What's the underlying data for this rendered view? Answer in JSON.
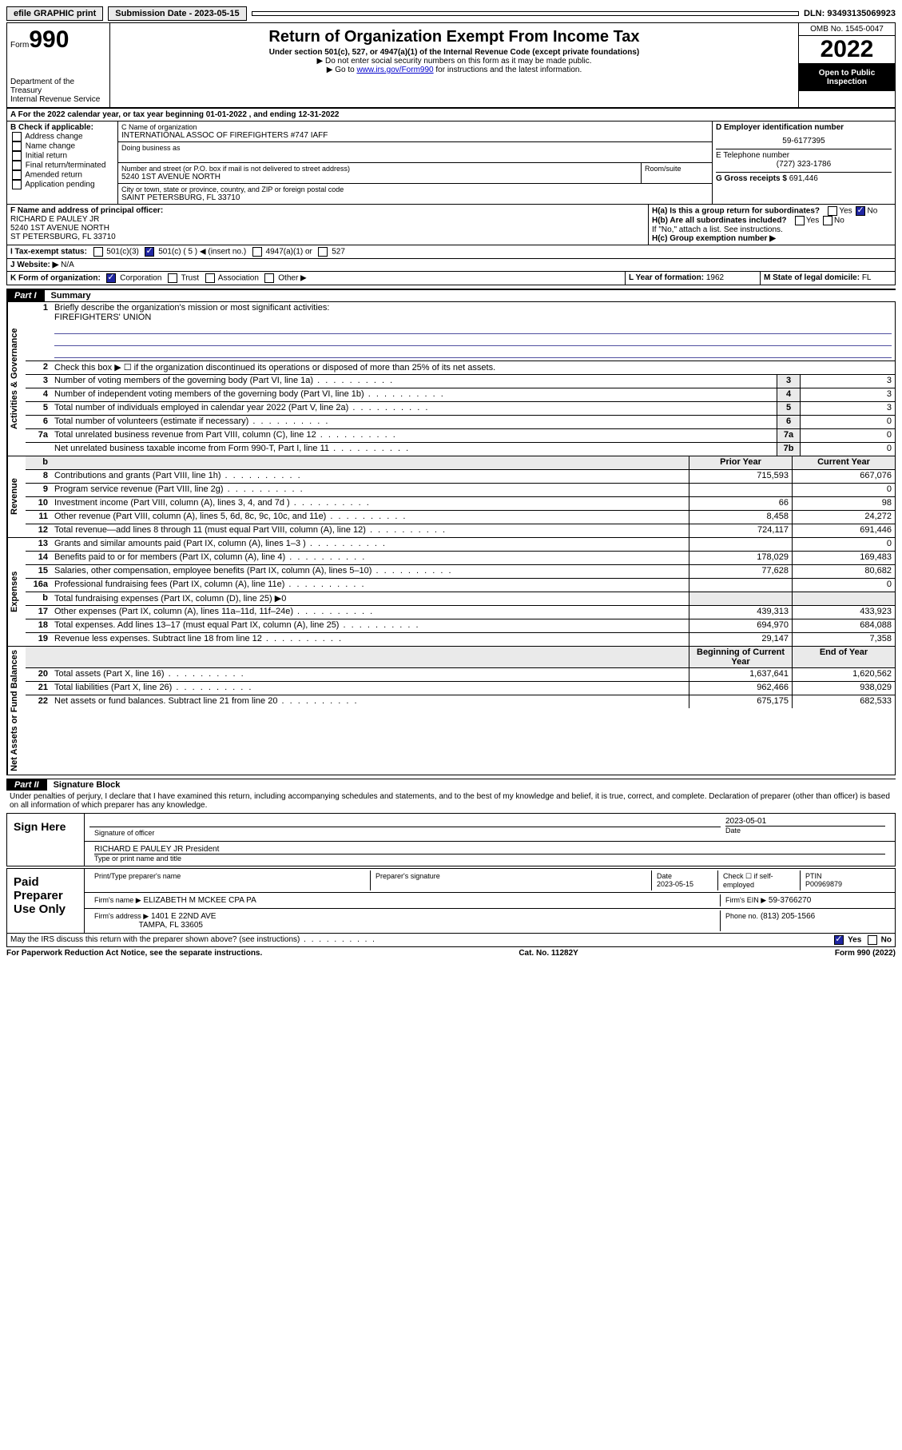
{
  "topbar": {
    "efile": "efile GRAPHIC print",
    "submission_label": "Submission Date - 2023-05-15",
    "dln": "DLN: 93493135069923"
  },
  "header": {
    "form_prefix": "Form",
    "form_number": "990",
    "dept": "Department of the Treasury",
    "irs": "Internal Revenue Service",
    "title": "Return of Organization Exempt From Income Tax",
    "sub": "Under section 501(c), 527, or 4947(a)(1) of the Internal Revenue Code (except private foundations)",
    "note1": "▶ Do not enter social security numbers on this form as it may be made public.",
    "note2_pre": "▶ Go to ",
    "note2_link": "www.irs.gov/Form990",
    "note2_post": " for instructions and the latest information.",
    "omb": "OMB No. 1545-0047",
    "year": "2022",
    "open": "Open to Public Inspection"
  },
  "line_a": "A For the 2022 calendar year, or tax year beginning 01-01-2022    , and ending 12-31-2022",
  "b": {
    "label": "B Check if applicable:",
    "opts": [
      "Address change",
      "Name change",
      "Initial return",
      "Final return/terminated",
      "Amended return",
      "Application pending"
    ]
  },
  "c": {
    "name_label": "C Name of organization",
    "name": "INTERNATIONAL ASSOC OF FIREFIGHTERS #747 IAFF",
    "dba_label": "Doing business as",
    "street_label": "Number and street (or P.O. box if mail is not delivered to street address)",
    "room_label": "Room/suite",
    "street": "5240 1ST AVENUE NORTH",
    "city_label": "City or town, state or province, country, and ZIP or foreign postal code",
    "city": "SAINT PETERSBURG, FL  33710"
  },
  "d": {
    "label": "D Employer identification number",
    "ein": "59-6177395",
    "e_label": "E Telephone number",
    "phone": "(727) 323-1786",
    "g_label": "G Gross receipts $",
    "g_val": "691,446"
  },
  "f": {
    "label": "F  Name and address of principal officer:",
    "name": "RICHARD E PAULEY JR",
    "street": "5240 1ST AVENUE NORTH",
    "city": "ST PETERSBURG, FL  33710"
  },
  "h": {
    "a": "H(a)  Is this a group return for subordinates?",
    "b": "H(b)  Are all subordinates included?",
    "b_note": "If \"No,\" attach a list. See instructions.",
    "c": "H(c)  Group exemption number ▶",
    "yes": "Yes",
    "no": "No"
  },
  "i": {
    "label": "I    Tax-exempt status:",
    "c3": "501(c)(3)",
    "c": "501(c) ( 5 ) ◀ (insert no.)",
    "a1": "4947(a)(1) or",
    "527": "527"
  },
  "j": {
    "label": "J    Website: ▶",
    "val": "N/A"
  },
  "k": {
    "label": "K Form of organization:",
    "corp": "Corporation",
    "trust": "Trust",
    "assoc": "Association",
    "other": "Other ▶"
  },
  "l": {
    "label": "L Year of formation:",
    "val": "1962"
  },
  "m": {
    "label": "M State of legal domicile:",
    "val": "FL"
  },
  "part1": {
    "header": "Part I",
    "title": "Summary",
    "q1": "Briefly describe the organization's mission or most significant activities:",
    "mission": "FIREFIGHTERS' UNION",
    "q2": "Check this box ▶ ☐  if the organization discontinued its operations or disposed of more than 25% of its net assets.",
    "rows_gov": [
      {
        "n": "3",
        "d": "Number of voting members of the governing body (Part VI, line 1a)",
        "b": "3",
        "v": "3"
      },
      {
        "n": "4",
        "d": "Number of independent voting members of the governing body (Part VI, line 1b)",
        "b": "4",
        "v": "3"
      },
      {
        "n": "5",
        "d": "Total number of individuals employed in calendar year 2022 (Part V, line 2a)",
        "b": "5",
        "v": "3"
      },
      {
        "n": "6",
        "d": "Total number of volunteers (estimate if necessary)",
        "b": "6",
        "v": "0"
      },
      {
        "n": "7a",
        "d": "Total unrelated business revenue from Part VIII, column (C), line 12",
        "b": "7a",
        "v": "0"
      },
      {
        "n": "",
        "d": "Net unrelated business taxable income from Form 990-T, Part I, line 11",
        "b": "7b",
        "v": "0"
      }
    ],
    "col_prior": "Prior Year",
    "col_current": "Current Year",
    "rows_rev": [
      {
        "n": "8",
        "d": "Contributions and grants (Part VIII, line 1h)",
        "p": "715,593",
        "c": "667,076"
      },
      {
        "n": "9",
        "d": "Program service revenue (Part VIII, line 2g)",
        "p": "",
        "c": "0"
      },
      {
        "n": "10",
        "d": "Investment income (Part VIII, column (A), lines 3, 4, and 7d )",
        "p": "66",
        "c": "98"
      },
      {
        "n": "11",
        "d": "Other revenue (Part VIII, column (A), lines 5, 6d, 8c, 9c, 10c, and 11e)",
        "p": "8,458",
        "c": "24,272"
      },
      {
        "n": "12",
        "d": "Total revenue—add lines 8 through 11 (must equal Part VIII, column (A), line 12)",
        "p": "724,117",
        "c": "691,446"
      }
    ],
    "rows_exp": [
      {
        "n": "13",
        "d": "Grants and similar amounts paid (Part IX, column (A), lines 1–3 )",
        "p": "",
        "c": "0"
      },
      {
        "n": "14",
        "d": "Benefits paid to or for members (Part IX, column (A), line 4)",
        "p": "178,029",
        "c": "169,483"
      },
      {
        "n": "15",
        "d": "Salaries, other compensation, employee benefits (Part IX, column (A), lines 5–10)",
        "p": "77,628",
        "c": "80,682"
      },
      {
        "n": "16a",
        "d": "Professional fundraising fees (Part IX, column (A), line 11e)",
        "p": "",
        "c": "0"
      },
      {
        "n": "b",
        "d": "Total fundraising expenses (Part IX, column (D), line 25) ▶0",
        "p": "grey",
        "c": "grey"
      },
      {
        "n": "17",
        "d": "Other expenses (Part IX, column (A), lines 11a–11d, 11f–24e)",
        "p": "439,313",
        "c": "433,923"
      },
      {
        "n": "18",
        "d": "Total expenses. Add lines 13–17 (must equal Part IX, column (A), line 25)",
        "p": "694,970",
        "c": "684,088"
      },
      {
        "n": "19",
        "d": "Revenue less expenses. Subtract line 18 from line 12",
        "p": "29,147",
        "c": "7,358"
      }
    ],
    "col_begin": "Beginning of Current Year",
    "col_end": "End of Year",
    "rows_net": [
      {
        "n": "20",
        "d": "Total assets (Part X, line 16)",
        "p": "1,637,641",
        "c": "1,620,562"
      },
      {
        "n": "21",
        "d": "Total liabilities (Part X, line 26)",
        "p": "962,466",
        "c": "938,029"
      },
      {
        "n": "22",
        "d": "Net assets or fund balances. Subtract line 21 from line 20",
        "p": "675,175",
        "c": "682,533"
      }
    ],
    "side_gov": "Activities & Governance",
    "side_rev": "Revenue",
    "side_exp": "Expenses",
    "side_net": "Net Assets or Fund Balances"
  },
  "part2": {
    "header": "Part II",
    "title": "Signature Block",
    "decl": "Under penalties of perjury, I declare that I have examined this return, including accompanying schedules and statements, and to the best of my knowledge and belief, it is true, correct, and complete. Declaration of preparer (other than officer) is based on all information of which preparer has any knowledge."
  },
  "sign": {
    "here": "Sign Here",
    "sig_officer": "Signature of officer",
    "date": "Date",
    "date_val": "2023-05-01",
    "name": "RICHARD E PAULEY JR President",
    "type_label": "Type or print name and title"
  },
  "paid": {
    "label": "Paid Preparer Use Only",
    "col1": "Print/Type preparer's name",
    "col2": "Preparer's signature",
    "col3": "Date",
    "date": "2023-05-15",
    "check": "Check ☐ if self-employed",
    "ptin_label": "PTIN",
    "ptin": "P00969879",
    "firm_name_label": "Firm's name    ▶",
    "firm_name": "ELIZABETH M MCKEE CPA PA",
    "firm_ein_label": "Firm's EIN ▶",
    "firm_ein": "59-3766270",
    "firm_addr_label": "Firm's address ▶",
    "firm_addr1": "1401 E 22ND AVE",
    "firm_addr2": "TAMPA, FL  33605",
    "phone_label": "Phone no.",
    "phone": "(813) 205-1566"
  },
  "discuss": "May the IRS discuss this return with the preparer shown above? (see instructions)",
  "footer": {
    "left": "For Paperwork Reduction Act Notice, see the separate instructions.",
    "mid": "Cat. No. 11282Y",
    "right": "Form 990 (2022)"
  }
}
